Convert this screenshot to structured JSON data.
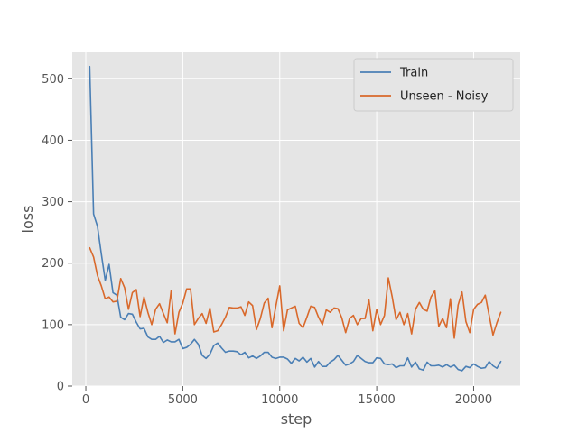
{
  "chart_data": {
    "type": "line",
    "xlabel": "step",
    "ylabel": "loss",
    "xlim": [
      -700,
      22400
    ],
    "ylim": [
      0,
      543
    ],
    "xticks": [
      0,
      5000,
      10000,
      15000,
      20000
    ],
    "xtick_labels": [
      "0",
      "5000",
      "10000",
      "15000",
      "20000"
    ],
    "yticks": [
      0,
      100,
      200,
      300,
      400,
      500
    ],
    "ytick_labels": [
      "0",
      "100",
      "200",
      "300",
      "400",
      "500"
    ],
    "grid": true,
    "legend_position": "top-right",
    "series": [
      {
        "name": "Train",
        "color": "#4a7fb5",
        "x": [
          200,
          400,
          600,
          800,
          1000,
          1200,
          1400,
          1600,
          1800,
          2000,
          2200,
          2400,
          2600,
          2800,
          3000,
          3200,
          3400,
          3600,
          3800,
          4000,
          4200,
          4400,
          4600,
          4800,
          5000,
          5200,
          5400,
          5600,
          5800,
          6000,
          6200,
          6400,
          6600,
          6800,
          7000,
          7200,
          7400,
          7600,
          7800,
          8000,
          8200,
          8400,
          8600,
          8800,
          9000,
          9200,
          9400,
          9600,
          9800,
          10000,
          10200,
          10400,
          10600,
          10800,
          11000,
          11200,
          11400,
          11600,
          11800,
          12000,
          12200,
          12400,
          12600,
          12800,
          13000,
          13200,
          13400,
          13600,
          13800,
          14000,
          14200,
          14400,
          14600,
          14800,
          15000,
          15200,
          15400,
          15600,
          15800,
          16000,
          16200,
          16400,
          16600,
          16800,
          17000,
          17200,
          17400,
          17600,
          17800,
          18000,
          18200,
          18400,
          18600,
          18800,
          19000,
          19200,
          19400,
          19600,
          19800,
          20000,
          20200,
          20400,
          20600,
          20800,
          21000,
          21200,
          21400
        ],
        "values": [
          520,
          280,
          260,
          215,
          172,
          198,
          152,
          148,
          112,
          108,
          118,
          117,
          104,
          93,
          94,
          80,
          76,
          76,
          81,
          71,
          75,
          72,
          72,
          76,
          61,
          63,
          68,
          76,
          68,
          50,
          45,
          52,
          66,
          70,
          62,
          55,
          57,
          57,
          56,
          51,
          55,
          46,
          49,
          45,
          49,
          55,
          55,
          47,
          45,
          47,
          47,
          44,
          37,
          45,
          41,
          47,
          39,
          45,
          31,
          40,
          32,
          32,
          39,
          43,
          50,
          42,
          34,
          36,
          40,
          50,
          45,
          40,
          38,
          38,
          46,
          45,
          36,
          35,
          36,
          30,
          33,
          33,
          46,
          31,
          39,
          28,
          26,
          39,
          33,
          33,
          34,
          31,
          35,
          31,
          34,
          27,
          25,
          32,
          30,
          36,
          32,
          29,
          30,
          40,
          33,
          29,
          40
        ]
      },
      {
        "name": "Unseen - Noisy",
        "color": "#d9692b",
        "x": [
          200,
          400,
          600,
          800,
          1000,
          1200,
          1400,
          1600,
          1800,
          2000,
          2200,
          2400,
          2600,
          2800,
          3000,
          3200,
          3400,
          3600,
          3800,
          4000,
          4200,
          4400,
          4600,
          4800,
          5000,
          5200,
          5400,
          5600,
          5800,
          6000,
          6200,
          6400,
          6600,
          6800,
          7000,
          7200,
          7400,
          7600,
          7800,
          8000,
          8200,
          8400,
          8600,
          8800,
          9000,
          9200,
          9400,
          9600,
          9800,
          10000,
          10200,
          10400,
          10600,
          10800,
          11000,
          11200,
          11400,
          11600,
          11800,
          12000,
          12200,
          12400,
          12600,
          12800,
          13000,
          13200,
          13400,
          13600,
          13800,
          14000,
          14200,
          14400,
          14600,
          14800,
          15000,
          15200,
          15400,
          15600,
          15800,
          16000,
          16200,
          16400,
          16600,
          16800,
          17000,
          17200,
          17400,
          17600,
          17800,
          18000,
          18200,
          18400,
          18600,
          18800,
          19000,
          19200,
          19400,
          19600,
          19800,
          20000,
          20200,
          20400,
          20600,
          20800,
          21000,
          21200,
          21400
        ],
        "values": [
          225,
          210,
          180,
          163,
          142,
          145,
          137,
          138,
          175,
          160,
          125,
          152,
          157,
          113,
          145,
          120,
          100,
          125,
          134,
          118,
          103,
          155,
          85,
          120,
          135,
          158,
          158,
          100,
          110,
          118,
          102,
          127,
          88,
          90,
          100,
          112,
          128,
          127,
          127,
          129,
          115,
          137,
          131,
          92,
          110,
          135,
          143,
          95,
          130,
          163,
          90,
          124,
          127,
          130,
          102,
          95,
          112,
          130,
          128,
          112,
          100,
          124,
          120,
          127,
          126,
          111,
          87,
          110,
          115,
          100,
          110,
          110,
          140,
          90,
          125,
          100,
          115,
          176,
          145,
          108,
          120,
          100,
          118,
          85,
          125,
          136,
          125,
          122,
          145,
          155,
          97,
          110,
          95,
          142,
          78,
          132,
          153,
          105,
          87,
          125,
          133,
          136,
          148,
          115,
          83,
          103,
          120
        ]
      }
    ]
  }
}
